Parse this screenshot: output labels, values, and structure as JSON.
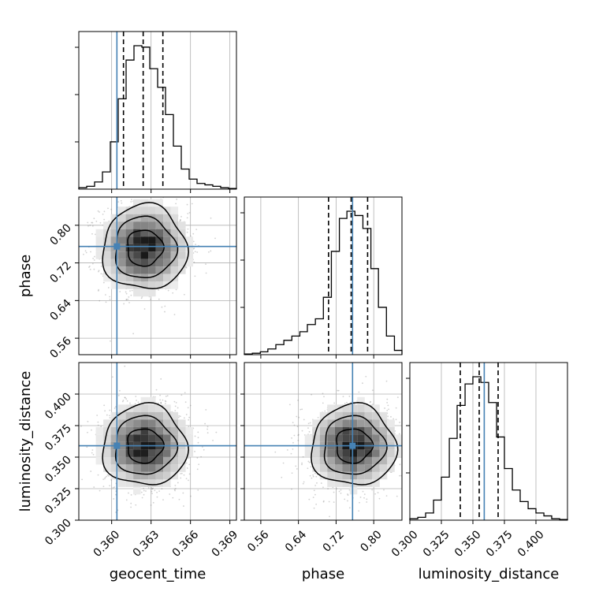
{
  "chart_data": {
    "type": "corner",
    "parameters": [
      "geocent_time",
      "phase",
      "luminosity_distance"
    ],
    "axis_labels": {
      "x": [
        "geocent_time",
        "phase",
        "luminosity_distance"
      ],
      "y": [
        "phase",
        "luminosity_distance"
      ]
    },
    "truth": {
      "geocent_time": 0.3604,
      "phase": 0.755,
      "luminosity_distance": 0.359
    },
    "truth_color": "#4682b4",
    "grid": true,
    "ranges": {
      "geocent_time": [
        0.3575,
        0.3695
      ],
      "phase": [
        0.525,
        0.86
      ],
      "luminosity_distance": [
        0.3,
        0.425
      ]
    },
    "ticks": {
      "geocent_time": [
        "0.360",
        "0.363",
        "0.366",
        "0.369"
      ],
      "phase": [
        "0.56",
        "0.64",
        "0.72",
        "0.80"
      ],
      "luminosity_distance": [
        "0.300",
        "0.325",
        "0.350",
        "0.375",
        "0.400"
      ]
    },
    "quantiles": {
      "geocent_time": [
        0.3609,
        0.3624,
        0.3639
      ],
      "phase": [
        0.704,
        0.752,
        0.787
      ],
      "luminosity_distance": [
        0.34,
        0.355,
        0.37
      ]
    },
    "histograms": {
      "geocent_time": {
        "edges": [
          0.3575,
          0.3581,
          0.3587,
          0.3593,
          0.3599,
          0.3605,
          0.3611,
          0.3617,
          0.3623,
          0.3629,
          0.3635,
          0.3641,
          0.3647,
          0.3653,
          0.3659,
          0.3665,
          0.3671,
          0.3677,
          0.3683,
          0.3689,
          0.3695
        ],
        "counts": [
          0.01,
          0.02,
          0.05,
          0.12,
          0.33,
          0.63,
          0.9,
          1.0,
          0.99,
          0.84,
          0.71,
          0.52,
          0.3,
          0.14,
          0.07,
          0.04,
          0.03,
          0.02,
          0.01,
          0.005
        ]
      },
      "phase": {
        "edges": [
          0.525,
          0.542,
          0.559,
          0.575,
          0.592,
          0.609,
          0.626,
          0.643,
          0.659,
          0.676,
          0.693,
          0.71,
          0.727,
          0.743,
          0.76,
          0.777,
          0.794,
          0.81,
          0.827,
          0.844,
          0.86
        ],
        "counts": [
          0.005,
          0.01,
          0.02,
          0.04,
          0.07,
          0.1,
          0.13,
          0.16,
          0.21,
          0.25,
          0.4,
          0.72,
          0.95,
          1.0,
          0.97,
          0.88,
          0.6,
          0.33,
          0.13,
          0.03
        ]
      },
      "luminosity_distance": {
        "edges": [
          0.3,
          0.3063,
          0.3125,
          0.3188,
          0.325,
          0.3313,
          0.3375,
          0.3438,
          0.35,
          0.3563,
          0.3625,
          0.3688,
          0.375,
          0.3813,
          0.3875,
          0.3938,
          0.4,
          0.4063,
          0.4125,
          0.4188,
          0.425
        ],
        "counts": [
          0.01,
          0.02,
          0.05,
          0.14,
          0.3,
          0.57,
          0.8,
          0.95,
          1.0,
          0.96,
          0.82,
          0.58,
          0.36,
          0.21,
          0.13,
          0.08,
          0.05,
          0.03,
          0.01,
          0.005
        ]
      }
    },
    "density_2d": [
      {
        "x": "geocent_time",
        "y": "phase",
        "mean": [
          0.3625,
          0.752
        ],
        "sd": [
          0.0016,
          0.045
        ]
      },
      {
        "x": "geocent_time",
        "y": "luminosity_distance",
        "mean": [
          0.3625,
          0.359
        ],
        "sd": [
          0.0016,
          0.016
        ]
      },
      {
        "x": "phase",
        "y": "luminosity_distance",
        "mean": [
          0.757,
          0.359
        ],
        "sd": [
          0.045,
          0.016
        ]
      }
    ]
  }
}
